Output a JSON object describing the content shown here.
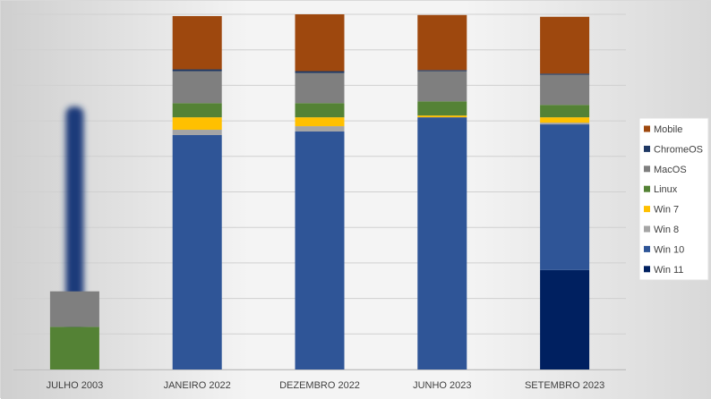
{
  "chart_data": {
    "type": "bar",
    "stacked": true,
    "percent_stacked": true,
    "categories": [
      "JULHO 2003",
      "JANEIRO 2022",
      "DEZEMBRO 2022",
      "JUNHO 2023",
      "SETEMBRO 2023"
    ],
    "ylim": [
      0,
      100
    ],
    "grid": true,
    "legend_position": "right",
    "title": "",
    "xlabel": "",
    "ylabel": "",
    "series": [
      {
        "name": "Win 11",
        "color": "#002060",
        "values": [
          0,
          0,
          0,
          0,
          28
        ]
      },
      {
        "name": "Win 10",
        "color": "#2F5597",
        "values": [
          0,
          66,
          67,
          71,
          41
        ]
      },
      {
        "name": "Win 8",
        "color": "#A5A5A5",
        "values": [
          0,
          1.5,
          1.5,
          0,
          0.5
        ]
      },
      {
        "name": "Win 7",
        "color": "#FFC000",
        "values": [
          0,
          3.5,
          2.5,
          0.5,
          1.5
        ]
      },
      {
        "name": "Linux",
        "color": "#548235",
        "values": [
          12,
          4,
          4,
          4,
          3.5
        ]
      },
      {
        "name": "MacOS",
        "color": "#7F7F7F",
        "values": [
          10,
          9,
          8.5,
          8.5,
          8.5
        ]
      },
      {
        "name": "ChromeOS",
        "color": "#1F3864",
        "values": [
          0,
          0.5,
          0.5,
          0.3,
          0.3
        ]
      },
      {
        "name": "Mobile",
        "color": "#9E480E",
        "values": [
          0,
          15,
          16,
          15.5,
          16
        ]
      }
    ],
    "legend_order": [
      "Mobile",
      "ChromeOS",
      "MacOS",
      "Linux",
      "Win 7",
      "Win 8",
      "Win 10",
      "Win 11"
    ],
    "blurred_bar": {
      "category": "JULHO 2003",
      "from": 5,
      "to": 74,
      "color": "#1F3A7A"
    }
  }
}
